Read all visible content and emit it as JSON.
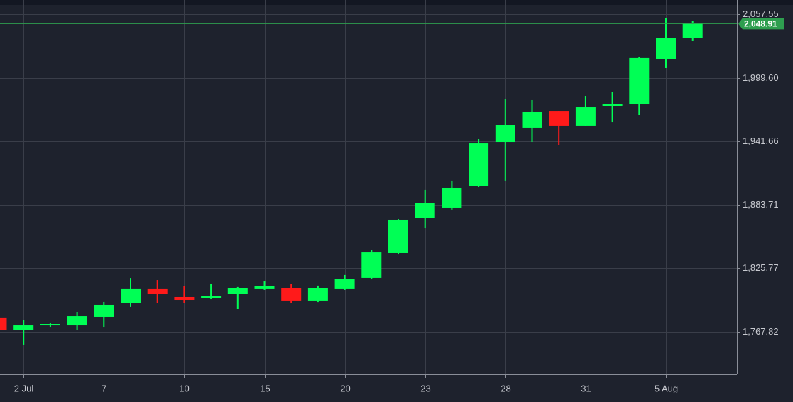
{
  "chart_data": {
    "type": "candlestick",
    "categories": [
      null,
      "2 Jul",
      null,
      null,
      "7",
      null,
      null,
      "10",
      null,
      null,
      "15",
      null,
      null,
      "20",
      null,
      null,
      "23",
      null,
      null,
      "28",
      null,
      null,
      "31",
      null,
      null,
      "5 Aug",
      null
    ],
    "series": [
      {
        "open": [
          1780.8,
          1769.1,
          1773.6,
          1773.6,
          1781.4,
          1794.3,
          1807.3,
          1799.5,
          1798.2,
          1802.1,
          1807.3,
          1807.9,
          1796.3,
          1807.3,
          1817.0,
          1839.6,
          1871.3,
          1881.0,
          1901.0,
          1941.1,
          1954.1,
          1968.9,
          1955.4,
          1973.5,
          1975.4,
          2016.8,
          2036.2
        ],
        "high": [
          1782.0,
          1778.2,
          1775.6,
          1785.9,
          1795.0,
          1816.9,
          1815.0,
          1809.2,
          1811.8,
          1808.6,
          1813.7,
          1811.2,
          1809.9,
          1819.6,
          1842.2,
          1870.6,
          1897.2,
          1905.6,
          1943.7,
          1979.9,
          1979.3,
          1969.0,
          1982.5,
          1986.4,
          2018.7,
          2054.3,
          2051.7
        ],
        "low": [
          1769.0,
          1756.2,
          1772.3,
          1769.1,
          1772.3,
          1790.5,
          1794.3,
          1794.3,
          1797.6,
          1788.5,
          1806.0,
          1794.3,
          1794.9,
          1806.0,
          1816.3,
          1838.9,
          1862.2,
          1879.1,
          1899.7,
          1905.6,
          1941.1,
          1938.5,
          1955.4,
          1959.2,
          1965.7,
          2008.4,
          2033.0
        ],
        "close": [
          1769.1,
          1773.6,
          1774.9,
          1782.0,
          1792.4,
          1807.3,
          1802.1,
          1796.9,
          1800.2,
          1807.9,
          1809.2,
          1796.3,
          1807.9,
          1815.7,
          1840.2,
          1870.0,
          1884.9,
          1899.1,
          1939.8,
          1956.0,
          1968.3,
          1955.4,
          1972.8,
          1975.4,
          2017.5,
          2036.2,
          2048.91
        ]
      }
    ],
    "up_color": "#00ff55",
    "down_color": "#ff1a1a",
    "ylim": [
      1729.0,
      2065.3
    ],
    "yticks": [
      {
        "value": 1767.82,
        "label": "1,767.82"
      },
      {
        "value": 1825.77,
        "label": "1,825.77"
      },
      {
        "value": 1883.71,
        "label": "1,883.71"
      },
      {
        "value": 1941.66,
        "label": "1,941.66"
      },
      {
        "value": 1999.6,
        "label": "1,999.60"
      },
      {
        "value": 2057.55,
        "label": "2,057.55"
      }
    ],
    "last_price": {
      "value": 2048.91,
      "label": "2,048.91"
    },
    "last_price_color": "#2e9e4f",
    "grid": true
  }
}
